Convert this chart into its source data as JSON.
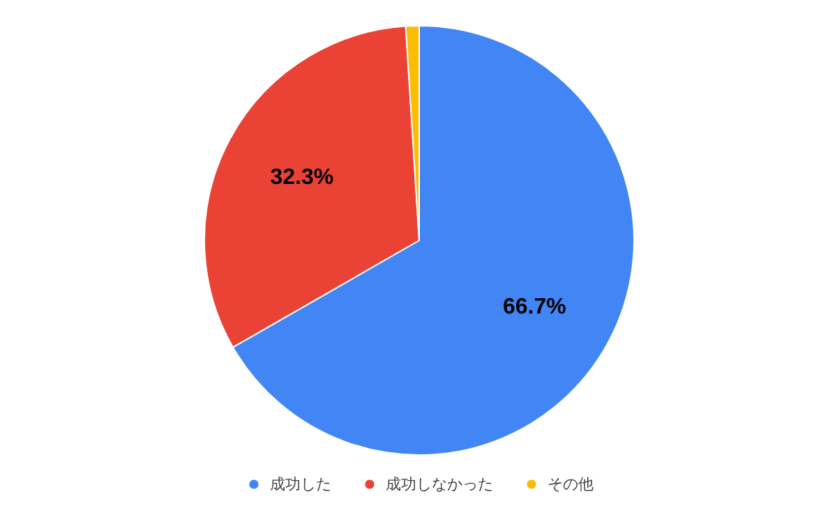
{
  "chart_data": {
    "type": "pie",
    "categories": [
      "成功した",
      "成功しなかった",
      "その他"
    ],
    "values": [
      66.7,
      32.3,
      1.0
    ],
    "colors": [
      "#4285f4",
      "#ea4335",
      "#fbbc04"
    ],
    "value_labels": [
      "66.7%",
      "32.3%",
      null
    ],
    "legend": "bottom"
  }
}
